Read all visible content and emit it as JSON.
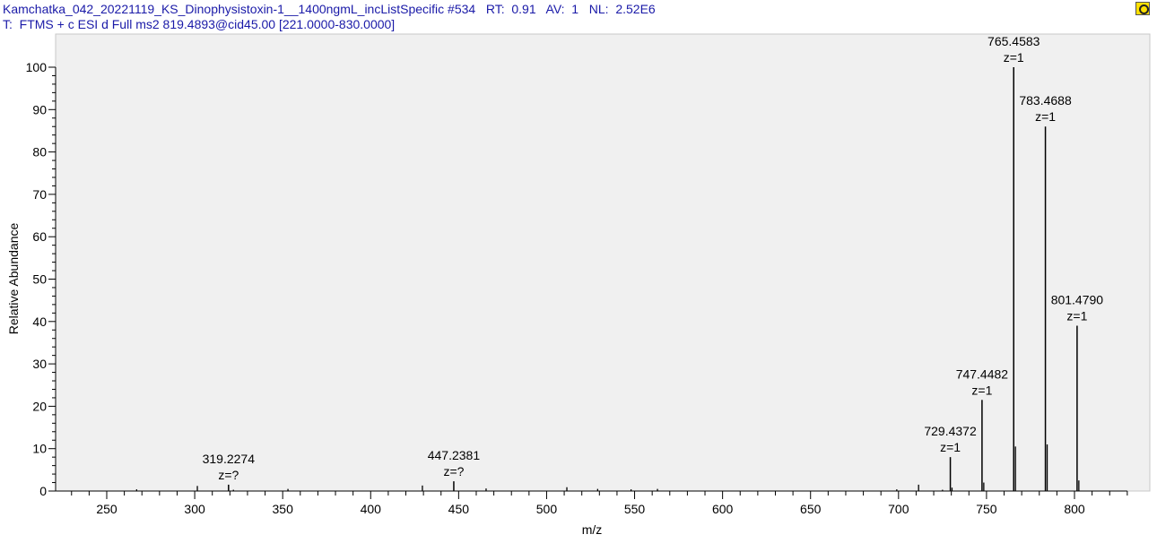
{
  "header": {
    "line1": "Kamchatka_042_20221119_KS_Dinophysistoxin-1__1400ngmL_incListSpecific #534   RT:  0.91   AV:  1   NL:  2.52E6",
    "line2": "T:  FTMS + c ESI d Full ms2 819.4893@cid45.00 [221.0000-830.0000]",
    "icon": "spectrum-settings-icon"
  },
  "chart_data": {
    "type": "bar",
    "subtype": "stick-spectrum",
    "xlabel": "m/z",
    "ylabel": "Relative Abundance",
    "xlim": [
      221,
      830
    ],
    "ylim": [
      0,
      100
    ],
    "xticks": [
      250,
      300,
      350,
      400,
      450,
      500,
      550,
      600,
      650,
      700,
      750,
      800
    ],
    "yticks": [
      0,
      10,
      20,
      30,
      40,
      50,
      60,
      70,
      80,
      90,
      100
    ],
    "grid": false,
    "colors": {
      "plot_bg": "#f0f0f0",
      "stick": "#000000",
      "label": "#000000"
    },
    "labeled_peaks": [
      {
        "mz": 319.2274,
        "intensity": 1.5,
        "label": "319.2274",
        "charge": "z=?"
      },
      {
        "mz": 447.2381,
        "intensity": 2.3,
        "label": "447.2381",
        "charge": "z=?"
      },
      {
        "mz": 729.4372,
        "intensity": 8.0,
        "label": "729.4372",
        "charge": "z=1"
      },
      {
        "mz": 747.4482,
        "intensity": 21.5,
        "label": "747.4482",
        "charge": "z=1"
      },
      {
        "mz": 765.4583,
        "intensity": 100,
        "label": "765.4583",
        "charge": "z=1"
      },
      {
        "mz": 783.4688,
        "intensity": 86,
        "label": "783.4688",
        "charge": "z=1"
      },
      {
        "mz": 801.479,
        "intensity": 39,
        "label": "801.4790",
        "charge": "z=1"
      }
    ],
    "minor_peaks": [
      {
        "mz": 267,
        "intensity": 0.4
      },
      {
        "mz": 301.5,
        "intensity": 1.2
      },
      {
        "mz": 322,
        "intensity": 0.3
      },
      {
        "mz": 353,
        "intensity": 0.5
      },
      {
        "mz": 429.4,
        "intensity": 1.3
      },
      {
        "mz": 465.6,
        "intensity": 0.6
      },
      {
        "mz": 511.5,
        "intensity": 0.9
      },
      {
        "mz": 529,
        "intensity": 0.5
      },
      {
        "mz": 548,
        "intensity": 0.4
      },
      {
        "mz": 563,
        "intensity": 0.5
      },
      {
        "mz": 699,
        "intensity": 0.4
      },
      {
        "mz": 711.4,
        "intensity": 1.5
      },
      {
        "mz": 725,
        "intensity": 0.3
      },
      {
        "mz": 730.4,
        "intensity": 0.8
      },
      {
        "mz": 748.45,
        "intensity": 2.0
      },
      {
        "mz": 766.46,
        "intensity": 10.5
      },
      {
        "mz": 784.47,
        "intensity": 11.0
      },
      {
        "mz": 802.48,
        "intensity": 2.5
      }
    ]
  }
}
